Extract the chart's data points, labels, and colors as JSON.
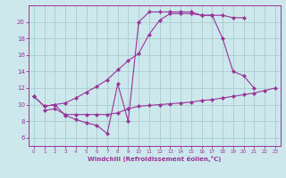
{
  "bg_color": "#cce8ec",
  "line_color": "#993399",
  "grid_color": "#aacccc",
  "xlabel": "Windchill (Refroidissement éolien,°C)",
  "ylim": [
    5,
    22
  ],
  "xlim": [
    -0.5,
    23.5
  ],
  "yticks": [
    6,
    8,
    10,
    12,
    14,
    16,
    18,
    20
  ],
  "xticks": [
    0,
    1,
    2,
    3,
    4,
    5,
    6,
    7,
    8,
    9,
    10,
    11,
    12,
    13,
    14,
    15,
    16,
    17,
    18,
    19,
    20,
    21,
    22,
    23
  ],
  "series": [
    {
      "x": [
        0,
        1,
        2,
        3,
        4,
        5,
        6,
        7,
        8,
        9,
        10,
        11,
        12,
        13,
        14,
        15,
        16,
        17,
        18,
        19,
        20,
        21
      ],
      "y": [
        11,
        9.8,
        10.0,
        8.7,
        8.2,
        7.8,
        7.5,
        6.5,
        12.5,
        8.0,
        20.0,
        21.2,
        21.2,
        21.2,
        21.2,
        21.2,
        20.8,
        20.8,
        18.0,
        14.0,
        13.5,
        12.0
      ]
    },
    {
      "x": [
        0,
        1,
        2,
        3,
        4,
        5,
        6,
        7,
        8,
        9,
        10,
        11,
        12,
        13,
        14,
        15,
        16,
        17,
        18,
        19,
        20
      ],
      "y": [
        11,
        9.8,
        10.0,
        10.2,
        10.8,
        11.5,
        12.2,
        13.0,
        14.2,
        15.3,
        16.2,
        18.5,
        20.2,
        21.0,
        21.0,
        21.0,
        20.8,
        20.8,
        20.8,
        20.5,
        20.5
      ]
    },
    {
      "x": [
        1,
        2,
        3,
        4,
        5,
        6,
        7,
        8,
        9,
        10,
        11,
        12,
        13,
        14,
        15,
        16,
        17,
        18,
        19,
        20,
        21,
        22,
        23
      ],
      "y": [
        9.3,
        9.5,
        8.8,
        8.8,
        8.8,
        8.8,
        8.8,
        9.0,
        9.5,
        9.8,
        9.9,
        10.0,
        10.1,
        10.2,
        10.3,
        10.5,
        10.6,
        10.8,
        11.0,
        11.2,
        11.4,
        11.7,
        12.0
      ]
    }
  ]
}
